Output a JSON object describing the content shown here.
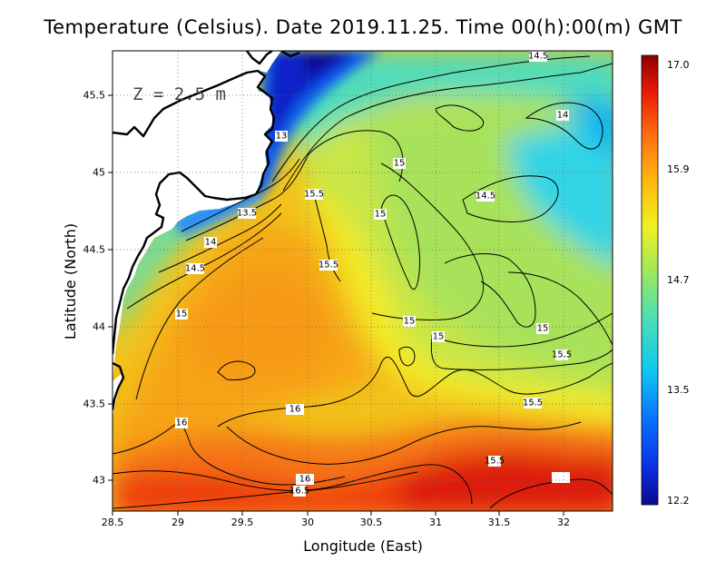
{
  "title": "Temperature (Celsius). Date 2019.11.25. Time 00(h):00(m)  GMT",
  "depth_label": "Z = 2.5 m",
  "x_axis_label": "Longitude (East)",
  "y_axis_label": "Latitude (North)",
  "x_ticks": [
    "28.5",
    "29",
    "29.5",
    "30",
    "30.5",
    "31",
    "31.5",
    "32"
  ],
  "y_ticks": [
    "43",
    "43.5",
    "44",
    "44.5",
    "45",
    "45.5"
  ],
  "colorbar": {
    "ticks": [
      "17.0",
      "15.9",
      "14.7",
      "13.5",
      "12.2"
    ],
    "min": 12.2,
    "max": 17.0
  },
  "contour_labels": [
    "14.5",
    "14",
    "13",
    "15",
    "14.5",
    "15.5",
    "15",
    "13.5",
    "14",
    "15.5",
    "14.5",
    "15",
    "15",
    "15",
    "15",
    "15.5",
    "15.5",
    "16",
    "16",
    "15.5",
    "16",
    "16.5"
  ],
  "chart_data": {
    "type": "heatmap",
    "title": "Temperature (Celsius). Date 2019.11.25. Time 00(h):00(m)  GMT",
    "xlabel": "Longitude (East)",
    "ylabel": "Latitude (North)",
    "xlim": [
      28.5,
      32.4
    ],
    "ylim": [
      42.8,
      45.8
    ],
    "value_range": [
      12.2,
      17.0
    ],
    "colorbar_ticks": [
      17.0,
      15.9,
      14.7,
      13.5,
      12.2
    ],
    "grid": true,
    "contour_levels": [
      13,
      13.5,
      14,
      14.5,
      15,
      15.5,
      16,
      16.5
    ]
  }
}
